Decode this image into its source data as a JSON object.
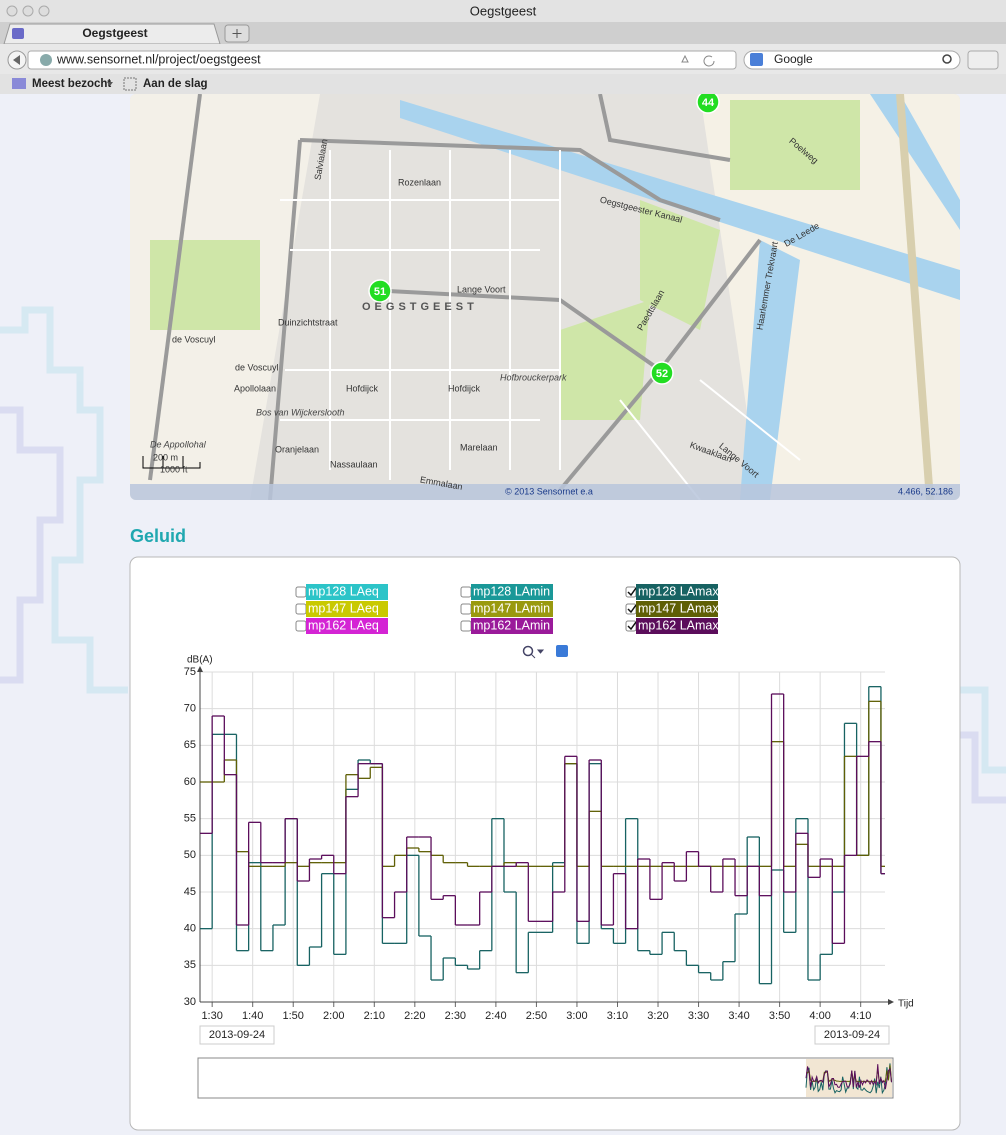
{
  "window": {
    "title": "Oegstgeest",
    "tab": "Oegstgeest",
    "url": "www.sensornet.nl/project/oegstgeest",
    "search": "Google",
    "bookmarks": [
      "Meest bezocht",
      "Aan de slag"
    ]
  },
  "map": {
    "labels": [
      "Oegstgeester Kanaal",
      "OEGSTGEEST",
      "Lange Voort",
      "Duinzichtstraat",
      "de Voscuyl",
      "de Voscuyl",
      "Apollolaan",
      "Hofdijck",
      "Hofdijck",
      "Hofbrouckerpark",
      "Bos van Wijckerslooth",
      "De Appollohal",
      "Oranjelaan",
      "Nassaulaan",
      "Marelaan",
      "Emmalaan",
      "Kwaaklaan",
      "Lange Voort",
      "De Leede",
      "Poelweg",
      "Haarlemmer Trekvaart",
      "Rozenlaan",
      "Paedtslaan",
      "Salvialaan"
    ],
    "markers": [
      "44",
      "51",
      "52"
    ],
    "attribution": "© 2013 Sensornet e.a",
    "coordinates": "4.466, 52.186",
    "scale": [
      "200 m",
      "1000 ft"
    ]
  },
  "section_title": "Geluid",
  "chart_data": {
    "type": "line",
    "step": true,
    "y_label": "dB(A)",
    "x_label": "Tijd",
    "grid": true,
    "xlim": [
      87,
      256
    ],
    "ylim": [
      30,
      75
    ],
    "xticks": [
      {
        "value": 90,
        "label": "1:30"
      },
      {
        "value": 100,
        "label": "1:40"
      },
      {
        "value": 110,
        "label": "1:50"
      },
      {
        "value": 120,
        "label": "2:00"
      },
      {
        "value": 130,
        "label": "2:10"
      },
      {
        "value": 140,
        "label": "2:20"
      },
      {
        "value": 150,
        "label": "2:30"
      },
      {
        "value": 160,
        "label": "2:40"
      },
      {
        "value": 170,
        "label": "2:50"
      },
      {
        "value": 180,
        "label": "3:00"
      },
      {
        "value": 190,
        "label": "3:10"
      },
      {
        "value": 200,
        "label": "3:20"
      },
      {
        "value": 210,
        "label": "3:30"
      },
      {
        "value": 220,
        "label": "3:40"
      },
      {
        "value": 230,
        "label": "3:50"
      },
      {
        "value": 240,
        "label": "4:00"
      },
      {
        "value": 250,
        "label": "4:10"
      }
    ],
    "yticks": [
      30,
      35,
      40,
      45,
      50,
      55,
      60,
      65,
      70,
      75
    ],
    "date_range": [
      "2013-09-24",
      "2013-09-24"
    ],
    "hidden_series": [
      {
        "name": "mp128 LAeq",
        "color": "#2cc4c8"
      },
      {
        "name": "mp147 LAeq",
        "color": "#c9c900"
      },
      {
        "name": "mp162 LAeq",
        "color": "#d424d4"
      },
      {
        "name": "mp128 LAmin",
        "color": "#1a9898"
      },
      {
        "name": "mp147 LAmin",
        "color": "#99990f"
      },
      {
        "name": "mp162 LAmin",
        "color": "#9a1a9a"
      }
    ],
    "x": [
      87,
      90,
      93,
      96,
      99,
      102,
      105,
      108,
      111,
      114,
      117,
      120,
      123,
      126,
      129,
      132,
      135,
      138,
      141,
      144,
      147,
      150,
      153,
      156,
      159,
      162,
      165,
      168,
      171,
      174,
      177,
      180,
      183,
      186,
      189,
      192,
      195,
      198,
      201,
      204,
      207,
      210,
      213,
      216,
      219,
      222,
      225,
      228,
      231,
      234,
      237,
      240,
      243,
      246,
      249,
      252,
      255
    ],
    "series": [
      {
        "name": "mp128 LAmax",
        "color": "#176262",
        "values": [
          40,
          66.5,
          66.5,
          37,
          49,
          37,
          40.5,
          55,
          35,
          37.5,
          47.5,
          36.5,
          59,
          63,
          62.5,
          38,
          38,
          50,
          39,
          33,
          36,
          35,
          34.5,
          37,
          55,
          45,
          34,
          39.5,
          39.5,
          49,
          62.5,
          38,
          62.5,
          40,
          38,
          55,
          37,
          36.5,
          39.5,
          37,
          35,
          34,
          33,
          35.5,
          42,
          52.5,
          32.5,
          48,
          39.5,
          55,
          33,
          36.5,
          45,
          68,
          50,
          73,
          47.5
        ]
      },
      {
        "name": "mp147 LAmax",
        "color": "#5f5f05",
        "values": [
          60,
          60,
          63,
          50.5,
          48.5,
          48.5,
          48.5,
          49,
          48.5,
          49,
          49,
          49,
          61,
          60.5,
          62,
          48.5,
          50,
          51,
          50.5,
          50,
          49,
          49,
          48.5,
          48.5,
          48.5,
          49,
          48.5,
          48.5,
          48.5,
          48.5,
          62.5,
          48.5,
          56,
          48.5,
          48.5,
          48.5,
          48.5,
          48.5,
          48.5,
          48.5,
          48.5,
          48.5,
          48.5,
          48.5,
          48.5,
          48.5,
          48.5,
          65.5,
          48.5,
          51.5,
          48.5,
          48.5,
          48.5,
          63.5,
          50,
          71,
          48.5
        ]
      },
      {
        "name": "mp162 LAmax",
        "color": "#5b0d5b",
        "values": [
          53,
          69,
          61,
          40.5,
          54.5,
          49,
          49,
          55,
          46.5,
          49.5,
          50,
          47.5,
          58,
          62.5,
          62.5,
          41.5,
          45,
          52.5,
          52.5,
          44,
          44.5,
          40.5,
          40.5,
          45,
          48.5,
          48.5,
          49,
          41,
          41,
          45,
          63.5,
          41,
          63,
          40.5,
          47.5,
          40,
          49.5,
          44,
          49,
          46.5,
          50.5,
          48.5,
          45,
          49.5,
          44.5,
          48.5,
          44.5,
          72,
          45,
          53,
          47,
          49.5,
          38,
          50,
          63.5,
          65.5,
          47.5
        ]
      }
    ]
  }
}
